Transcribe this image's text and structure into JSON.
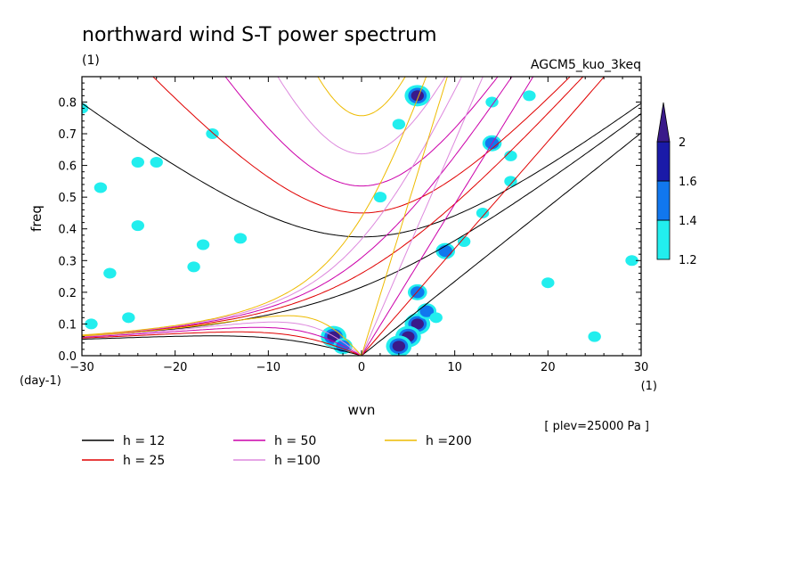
{
  "chart_data": {
    "type": "heatmap",
    "title": "northward wind S-T power spectrum",
    "title_units": "(1)",
    "model_label": "AGCM5_kuo_3keq",
    "xlabel": "wvn",
    "x_units": "(1)",
    "ylabel": "freq",
    "y_units": "(day-1)",
    "plev_note": "[ plev=25000 Pa ]",
    "xlim": [
      -30,
      30
    ],
    "ylim": [
      0,
      0.88
    ],
    "x_ticks": [
      -30,
      -20,
      -10,
      0,
      10,
      20,
      30
    ],
    "y_ticks": [
      0.0,
      0.1,
      0.2,
      0.3,
      0.4,
      0.5,
      0.6,
      0.7,
      0.8
    ],
    "colorbar": {
      "levels": [
        "1.2",
        "1.4",
        "1.6",
        "2"
      ],
      "colors": [
        "#22eeee",
        "#1177ee",
        "#1a1aa8",
        "#3a1a8a"
      ],
      "extend": "max"
    },
    "dispersion_curves": [
      {
        "name": "h = 12",
        "h": 12,
        "color": "#000000"
      },
      {
        "name": "h = 25",
        "h": 25,
        "color": "#e00000"
      },
      {
        "name": "h = 50",
        "h": 50,
        "color": "#cc00aa"
      },
      {
        "name": "h =100",
        "h": 100,
        "color": "#dd88dd"
      },
      {
        "name": "h =200",
        "h": 200,
        "color": "#eebb00"
      }
    ],
    "power_blobs": [
      {
        "wvn": 6,
        "freq": 0.1,
        "level": 3
      },
      {
        "wvn": 5,
        "freq": 0.06,
        "level": 3
      },
      {
        "wvn": 4,
        "freq": 0.03,
        "level": 3
      },
      {
        "wvn": 7,
        "freq": 0.14,
        "level": 2
      },
      {
        "wvn": 6,
        "freq": 0.2,
        "level": 2
      },
      {
        "wvn": 9,
        "freq": 0.33,
        "level": 2
      },
      {
        "wvn": 11,
        "freq": 0.36,
        "level": 1
      },
      {
        "wvn": -3,
        "freq": 0.06,
        "level": 3
      },
      {
        "wvn": -2,
        "freq": 0.03,
        "level": 2
      },
      {
        "wvn": 6,
        "freq": 0.82,
        "level": 3
      },
      {
        "wvn": 14,
        "freq": 0.67,
        "level": 2
      },
      {
        "wvn": 13,
        "freq": 0.45,
        "level": 1
      },
      {
        "wvn": 16,
        "freq": 0.55,
        "level": 1
      },
      {
        "wvn": -30,
        "freq": 0.78,
        "level": 1
      },
      {
        "wvn": -28,
        "freq": 0.53,
        "level": 1
      },
      {
        "wvn": -24,
        "freq": 0.61,
        "level": 1
      },
      {
        "wvn": -22,
        "freq": 0.61,
        "level": 1
      },
      {
        "wvn": -16,
        "freq": 0.7,
        "level": 1
      },
      {
        "wvn": -24,
        "freq": 0.41,
        "level": 1
      },
      {
        "wvn": -17,
        "freq": 0.35,
        "level": 1
      },
      {
        "wvn": -13,
        "freq": 0.37,
        "level": 1
      },
      {
        "wvn": -18,
        "freq": 0.28,
        "level": 1
      },
      {
        "wvn": -25,
        "freq": 0.12,
        "level": 1
      },
      {
        "wvn": -29,
        "freq": 0.1,
        "level": 1
      },
      {
        "wvn": -27,
        "freq": 0.26,
        "level": 1
      },
      {
        "wvn": 18,
        "freq": 0.82,
        "level": 1
      },
      {
        "wvn": 20,
        "freq": 0.23,
        "level": 1
      },
      {
        "wvn": 25,
        "freq": 0.06,
        "level": 1
      },
      {
        "wvn": 29,
        "freq": 0.3,
        "level": 1
      },
      {
        "wvn": 16,
        "freq": 0.63,
        "level": 1
      },
      {
        "wvn": 2,
        "freq": 0.5,
        "level": 1
      },
      {
        "wvn": 4,
        "freq": 0.73,
        "level": 1
      },
      {
        "wvn": 14,
        "freq": 0.8,
        "level": 1
      },
      {
        "wvn": 8,
        "freq": 0.12,
        "level": 1
      }
    ]
  }
}
